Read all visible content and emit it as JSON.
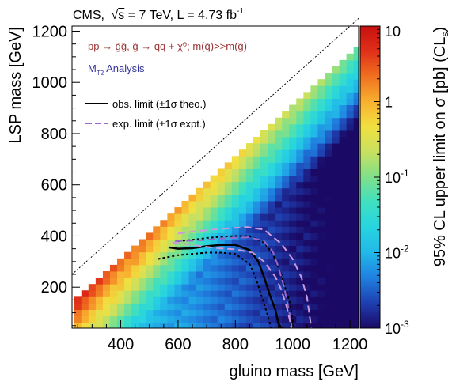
{
  "header": {
    "experiment": "CMS,",
    "sqrt_s": "s",
    "energy": " = 7 TeV, L = 4.73 fb",
    "lumi_exp": "-1"
  },
  "process": {
    "line": "pp → g̃g̃, g̃ → qq̄ + χ̃⁰; m(q̃)>>m(g̃)",
    "analysis_pre": "M",
    "analysis_sub": "T2",
    "analysis_post": " Analysis"
  },
  "legend": {
    "entries": [
      {
        "label": "obs. limit (±1σ theo.)",
        "color": "#000000",
        "style": "solid"
      },
      {
        "label": "exp. limit (±1σ expt.)",
        "color": "#9966cc",
        "style": "dashed"
      }
    ]
  },
  "colorbar": {
    "title": "95% CL upper limit on σ [pb] (CLs)",
    "ticks": [
      "10",
      "1",
      "10-1",
      "10-2",
      "10-3"
    ],
    "colors": [
      "#1a0a66",
      "#1f3fb0",
      "#1f80e0",
      "#22b8e8",
      "#27d4e0",
      "#3fe0c0",
      "#7fe08a",
      "#c8e060",
      "#f0e040",
      "#f8b030",
      "#f07020",
      "#e03018",
      "#c81010"
    ]
  },
  "chart_data": {
    "type": "heatmap",
    "title": "CMS, √s = 7 TeV, L = 4.73 fb-1",
    "xlabel": "gluino mass [GeV]",
    "ylabel": "LSP mass [GeV]",
    "xlim": [
      230,
      1230
    ],
    "ylim": [
      40,
      1220
    ],
    "x_ticks": [
      400,
      600,
      800,
      1000,
      1200
    ],
    "y_ticks": [
      200,
      400,
      600,
      800,
      1000,
      1200
    ],
    "z_label": "95% CL upper limit on σ [pb] (CLs)",
    "z_scale": "log",
    "z_range": [
      0.001,
      10
    ],
    "grid": false,
    "legend_position": "top-left",
    "series": [
      {
        "name": "obs. limit (±1σ theo.)",
        "style": "solid",
        "color": "#000000",
        "x": [
          570,
          600,
          650,
          700,
          750,
          800,
          850,
          880,
          900,
          920,
          940,
          950,
          960,
          965
        ],
        "y": [
          355,
          350,
          352,
          360,
          365,
          365,
          345,
          300,
          240,
          170,
          110,
          60,
          40,
          40
        ]
      },
      {
        "style": "dotted",
        "color": "#000000",
        "x": [
          530,
          600,
          650,
          700,
          750,
          800,
          850,
          870,
          890,
          910,
          920,
          925
        ],
        "y": [
          310,
          325,
          330,
          335,
          335,
          330,
          290,
          240,
          170,
          100,
          60,
          40
        ]
      },
      {
        "style": "dotted",
        "color": "#000000",
        "x": [
          600,
          650,
          700,
          750,
          800,
          850,
          900,
          930,
          960,
          990,
          1000,
          1005
        ],
        "y": [
          380,
          385,
          392,
          397,
          400,
          400,
          375,
          330,
          250,
          140,
          70,
          40
        ]
      },
      {
        "name": "exp. limit (±1σ expt.)",
        "style": "dashed",
        "color": "#9966cc",
        "x": [
          590,
          650,
          700,
          750,
          800,
          850,
          900,
          930,
          950,
          970,
          985,
          995,
          1000
        ],
        "y": [
          380,
          382,
          385,
          390,
          393,
          395,
          380,
          340,
          280,
          200,
          120,
          60,
          40
        ]
      },
      {
        "style": "dashed",
        "color": "#cc99dd",
        "x": [
          580,
          620,
          680,
          740,
          800,
          860,
          900,
          940,
          960,
          980,
          990,
          995
        ],
        "y": [
          375,
          370,
          360,
          352,
          348,
          335,
          300,
          240,
          190,
          120,
          70,
          40
        ]
      },
      {
        "style": "dashed",
        "color": "#cc99dd",
        "x": [
          600,
          660,
          720,
          780,
          840,
          900,
          960,
          1000,
          1030,
          1050,
          1060,
          1065
        ],
        "y": [
          410,
          418,
          425,
          430,
          435,
          425,
          370,
          310,
          240,
          160,
          80,
          40
        ]
      }
    ]
  }
}
